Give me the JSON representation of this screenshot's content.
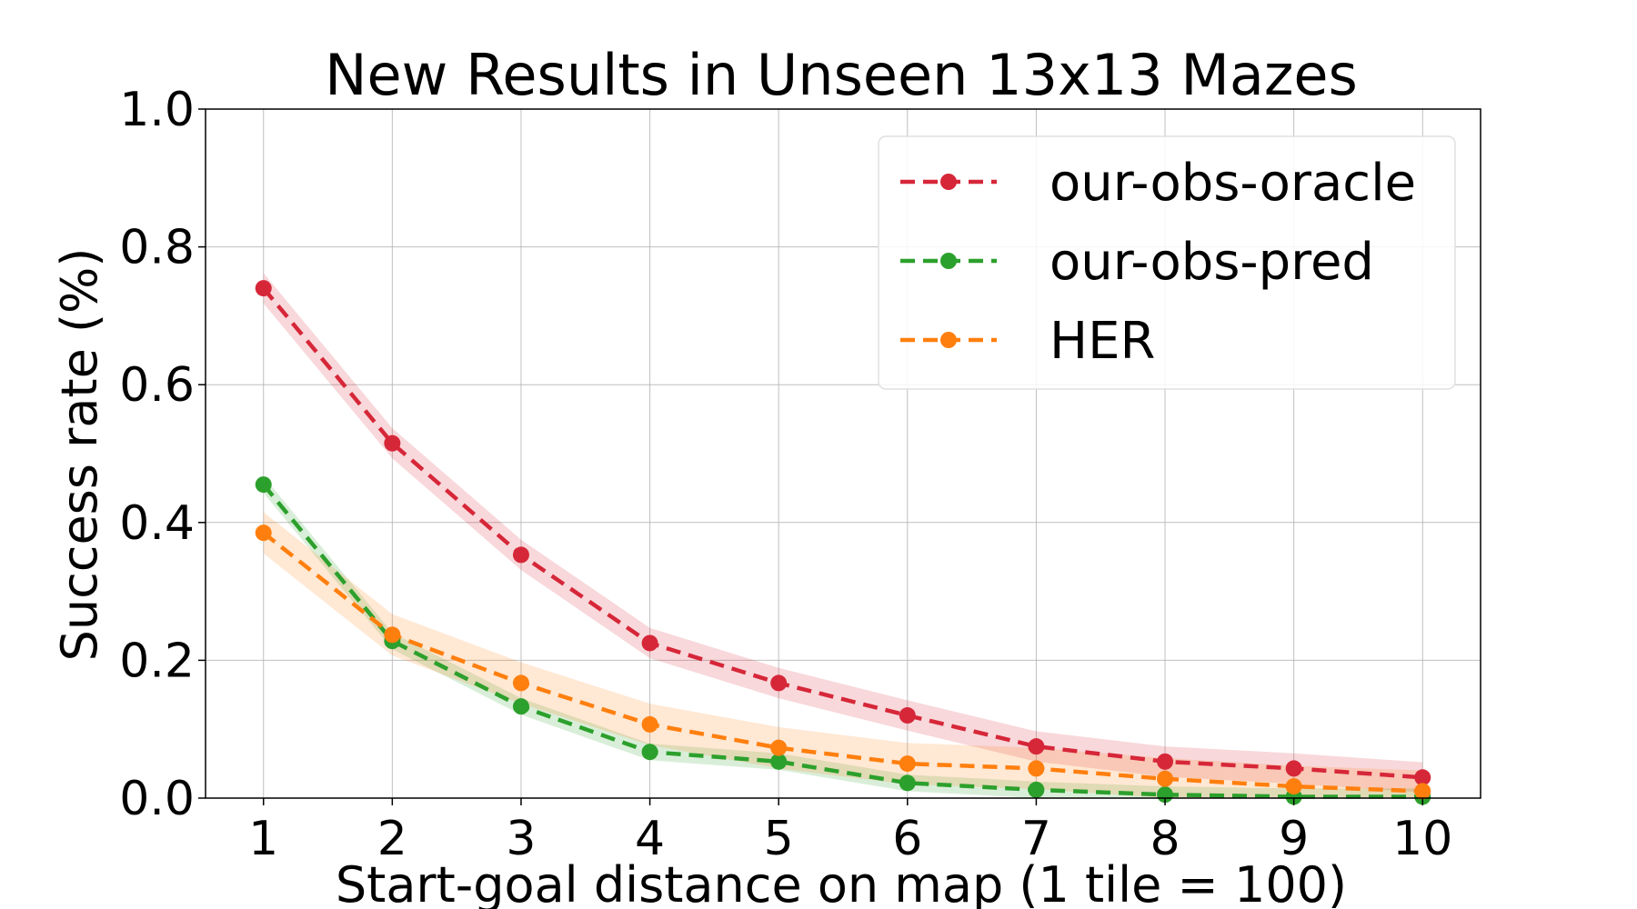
{
  "chart_data": {
    "type": "line",
    "title": "New Results in Unseen 13x13 Mazes",
    "xlabel": "Start-goal distance on map (1 tile = 100)",
    "ylabel": "Success rate (%)",
    "x": [
      1,
      2,
      3,
      4,
      5,
      6,
      7,
      8,
      9,
      10
    ],
    "xlim": [
      0.55,
      10.45
    ],
    "ylim": [
      0.0,
      1.0
    ],
    "xticks": [
      1,
      2,
      3,
      4,
      5,
      6,
      7,
      8,
      9,
      10
    ],
    "yticks": [
      0.0,
      0.2,
      0.4,
      0.6,
      0.8,
      1.0
    ],
    "ytick_labels": [
      "0.0",
      "0.2",
      "0.4",
      "0.6",
      "0.8",
      "1.0"
    ],
    "grid": true,
    "legend_position": "top-right",
    "series": [
      {
        "name": "our-obs-oracle",
        "color": "#d62739",
        "values": [
          0.74,
          0.515,
          0.353,
          0.225,
          0.167,
          0.12,
          0.075,
          0.053,
          0.043,
          0.03
        ],
        "band": 0.022
      },
      {
        "name": "our-obs-pred",
        "color": "#2ca02c",
        "values": [
          0.455,
          0.228,
          0.133,
          0.067,
          0.053,
          0.022,
          0.012,
          0.005,
          0.002,
          0.002
        ],
        "band": 0.012
      },
      {
        "name": "HER",
        "color": "#ff7f0e",
        "values": [
          0.385,
          0.237,
          0.167,
          0.107,
          0.073,
          0.05,
          0.043,
          0.028,
          0.017,
          0.01
        ],
        "band": 0.03
      }
    ]
  }
}
